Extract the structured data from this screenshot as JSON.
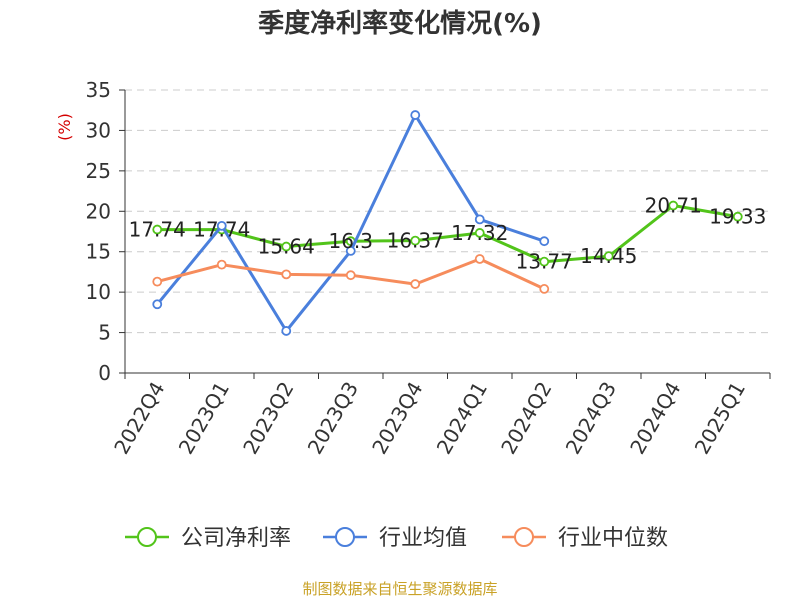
{
  "chart_data": {
    "type": "line",
    "title": "季度净利率变化情况(%)",
    "xlabel": "",
    "ylabel": "(%)",
    "ylim": [
      0,
      35
    ],
    "yticks": [
      0,
      5,
      10,
      15,
      20,
      25,
      30,
      35
    ],
    "grid": true,
    "legend_position": "bottom",
    "categories": [
      "2022Q4",
      "2023Q1",
      "2023Q2",
      "2023Q3",
      "2023Q4",
      "2024Q1",
      "2024Q2",
      "2024Q3",
      "2024Q4",
      "2025Q1"
    ],
    "series": [
      {
        "name": "公司净利率",
        "color": "#52c41a",
        "values": [
          17.74,
          17.74,
          15.64,
          16.3,
          16.37,
          17.32,
          13.77,
          14.45,
          20.71,
          19.33
        ],
        "labels": [
          "17.74",
          "17.74",
          "15.64",
          "16.3",
          "16.37",
          "17.32",
          "13.77",
          "14.45",
          "20.71",
          "19.33"
        ]
      },
      {
        "name": "行业均值",
        "color": "#4a7fdc",
        "values": [
          8.5,
          18.2,
          5.2,
          15.1,
          31.9,
          19.0,
          16.3,
          null,
          null,
          null
        ]
      },
      {
        "name": "行业中位数",
        "color": "#f68c5c",
        "values": [
          11.3,
          13.4,
          12.2,
          12.1,
          11.0,
          14.1,
          10.4,
          null,
          null,
          null
        ]
      }
    ]
  },
  "source_text": "制图数据来自恒生聚源数据库"
}
